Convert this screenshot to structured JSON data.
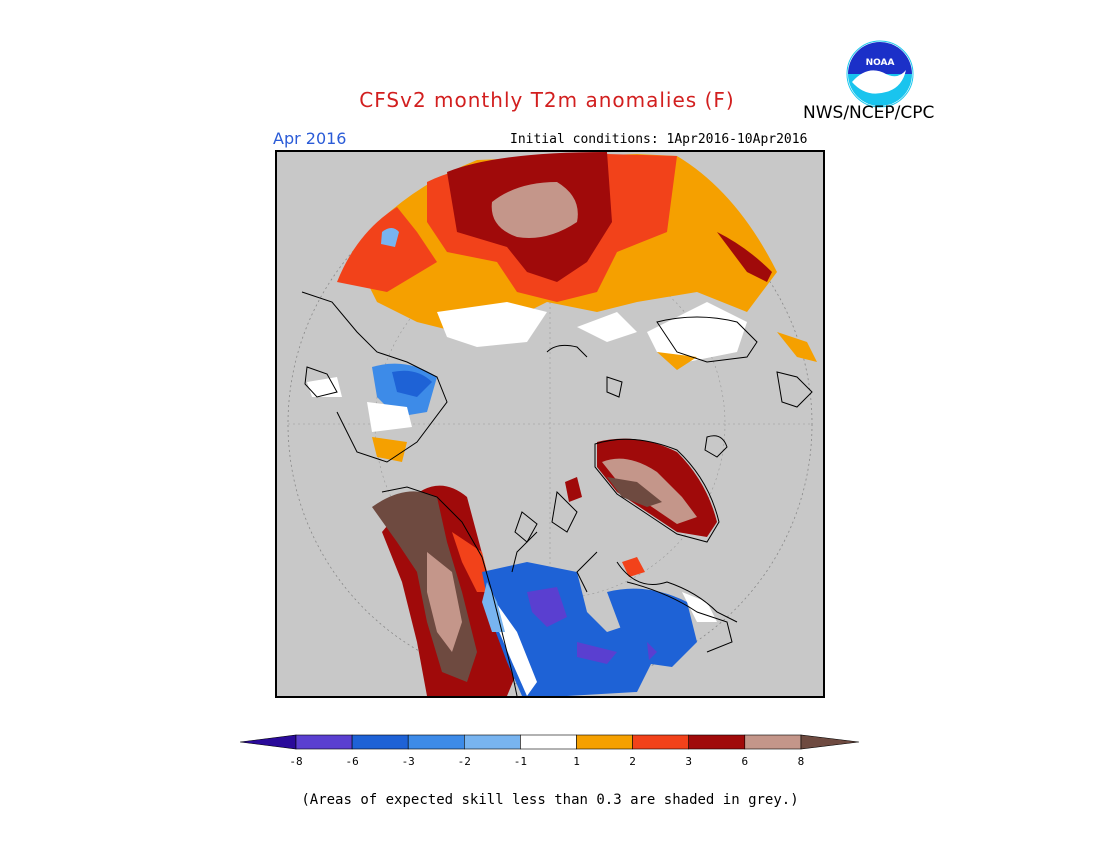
{
  "header": {
    "title": "CFSv2 monthly T2m anomalies (F)",
    "agency": "NWS/NCEP/CPC",
    "logo_text": "NOAA",
    "month": "Apr 2016",
    "initial_conditions": "Initial conditions: 1Apr2016-10Apr2016"
  },
  "legend": {
    "levels": [
      "-8",
      "-6",
      "-3",
      "-2",
      "-1",
      "1",
      "2",
      "3",
      "6",
      "8"
    ],
    "colors": [
      "#2a0a9a",
      "#5a3fd0",
      "#1e62d6",
      "#3d8be8",
      "#78b4f0",
      "#ffffff",
      "#f5a000",
      "#f2421a",
      "#a00a0a",
      "#c4968a",
      "#6e4a40"
    ]
  },
  "colors": {
    "no_skill": "#c8c8c8",
    "coast": "#000000"
  },
  "footnote": "(Areas of expected skill less than 0.3 are shaded in grey.)"
}
